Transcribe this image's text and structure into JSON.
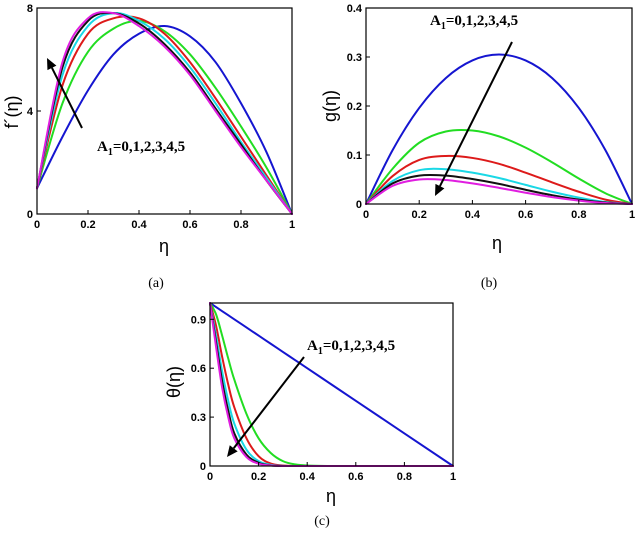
{
  "chart_data": [
    {
      "type": "line",
      "caption": "(a)",
      "xlabel": "η",
      "ylabel": "f´(η)",
      "xlim": [
        0,
        1
      ],
      "ylim": [
        0,
        8
      ],
      "xticks": [
        "0",
        "0.2",
        "0.4",
        "0.6",
        "0.8",
        "1"
      ],
      "yticks": [
        "0",
        "4",
        "8"
      ],
      "annotation": {
        "main": "A",
        "sub": "1",
        "rest": "=0,1,2,3,4,5"
      },
      "x": [
        0,
        0.1,
        0.2,
        0.3,
        0.4,
        0.5,
        0.6,
        0.7,
        0.8,
        0.9,
        1.0
      ],
      "series": [
        {
          "color": "#1515d0",
          "values": [
            1.0,
            3.0,
            4.8,
            6.2,
            7.0,
            7.3,
            6.9,
            5.9,
            4.3,
            2.4,
            0.0
          ]
        },
        {
          "color": "#22dd22",
          "values": [
            1.0,
            4.3,
            6.3,
            7.2,
            7.5,
            7.1,
            6.2,
            4.9,
            3.4,
            1.8,
            0.0
          ]
        },
        {
          "color": "#dd1a1a",
          "values": [
            1.0,
            5.0,
            7.0,
            7.6,
            7.6,
            7.0,
            5.9,
            4.5,
            3.0,
            1.5,
            0.0
          ]
        },
        {
          "color": "#1ad8e6",
          "values": [
            1.0,
            5.4,
            7.3,
            7.8,
            7.5,
            6.8,
            5.7,
            4.3,
            2.8,
            1.4,
            0.0
          ]
        },
        {
          "color": "#111111",
          "values": [
            1.0,
            5.7,
            7.5,
            7.8,
            7.4,
            6.6,
            5.5,
            4.1,
            2.7,
            1.3,
            0.0
          ]
        },
        {
          "color": "#e01ee0",
          "values": [
            1.0,
            5.9,
            7.6,
            7.8,
            7.3,
            6.5,
            5.4,
            4.0,
            2.6,
            1.3,
            0.0
          ]
        }
      ]
    },
    {
      "type": "line",
      "caption": "(b)",
      "xlabel": "η",
      "ylabel": "g(η)",
      "xlim": [
        0,
        1
      ],
      "ylim": [
        0,
        0.4
      ],
      "xticks": [
        "0",
        "0.2",
        "0.4",
        "0.6",
        "0.8",
        "1"
      ],
      "yticks": [
        "0",
        "0.1",
        "0.2",
        "0.3",
        "0.4"
      ],
      "annotation": {
        "main": "A",
        "sub": "1",
        "rest": "=0,1,2,3,4,5"
      },
      "x": [
        0,
        0.1,
        0.2,
        0.3,
        0.4,
        0.5,
        0.6,
        0.7,
        0.8,
        0.9,
        1.0
      ],
      "series": [
        {
          "color": "#1515d0",
          "values": [
            0,
            0.11,
            0.196,
            0.257,
            0.293,
            0.305,
            0.293,
            0.257,
            0.196,
            0.11,
            0
          ]
        },
        {
          "color": "#22dd22",
          "values": [
            0,
            0.072,
            0.125,
            0.148,
            0.15,
            0.138,
            0.115,
            0.085,
            0.052,
            0.022,
            0
          ]
        },
        {
          "color": "#dd1a1a",
          "values": [
            0,
            0.057,
            0.09,
            0.098,
            0.094,
            0.082,
            0.064,
            0.044,
            0.025,
            0.009,
            0
          ]
        },
        {
          "color": "#1ad8e6",
          "values": [
            0,
            0.047,
            0.069,
            0.071,
            0.064,
            0.053,
            0.039,
            0.025,
            0.013,
            0.004,
            0
          ]
        },
        {
          "color": "#111111",
          "values": [
            0,
            0.042,
            0.058,
            0.058,
            0.051,
            0.041,
            0.029,
            0.018,
            0.009,
            0.003,
            0
          ]
        },
        {
          "color": "#e01ee0",
          "values": [
            0,
            0.037,
            0.05,
            0.049,
            0.042,
            0.033,
            0.023,
            0.014,
            0.007,
            0.002,
            0
          ]
        }
      ]
    },
    {
      "type": "line",
      "caption": "(c)",
      "xlabel": "η",
      "ylabel": "θ(η)",
      "xlim": [
        0,
        1
      ],
      "ylim": [
        0,
        1
      ],
      "xticks": [
        "0",
        "0.2",
        "0.4",
        "0.6",
        "0.8",
        "1"
      ],
      "yticks": [
        "0",
        "0.3",
        "0.6",
        "0.9"
      ],
      "annotation": {
        "main": "A",
        "sub": "1",
        "rest": "=0,1,2,3,4,5"
      },
      "x": [
        0,
        0.025,
        0.05,
        0.075,
        0.1,
        0.15,
        0.2,
        0.25,
        0.3,
        0.35,
        0.4,
        0.5,
        0.6,
        1.0
      ],
      "series": [
        {
          "color": "#1515d0",
          "values": [
            1.0,
            0.975,
            0.95,
            0.925,
            0.9,
            0.85,
            0.8,
            0.75,
            0.7,
            0.65,
            0.6,
            0.5,
            0.4,
            0.0
          ]
        },
        {
          "color": "#22dd22",
          "values": [
            1.0,
            0.93,
            0.8,
            0.66,
            0.53,
            0.32,
            0.17,
            0.08,
            0.03,
            0.01,
            0.003,
            0.0,
            0.0,
            0.0
          ]
        },
        {
          "color": "#dd1a1a",
          "values": [
            1.0,
            0.86,
            0.67,
            0.5,
            0.36,
            0.17,
            0.06,
            0.015,
            0.003,
            0.0,
            0.0,
            0.0,
            0.0,
            0.0
          ]
        },
        {
          "color": "#1ad8e6",
          "values": [
            1.0,
            0.8,
            0.58,
            0.4,
            0.26,
            0.1,
            0.03,
            0.007,
            0.001,
            0.0,
            0.0,
            0.0,
            0.0,
            0.0
          ]
        },
        {
          "color": "#111111",
          "values": [
            1.0,
            0.76,
            0.52,
            0.34,
            0.2,
            0.07,
            0.02,
            0.004,
            0.0,
            0.0,
            0.0,
            0.0,
            0.0,
            0.0
          ]
        },
        {
          "color": "#e01ee0",
          "values": [
            1.0,
            0.73,
            0.48,
            0.3,
            0.17,
            0.055,
            0.014,
            0.003,
            0.0,
            0.0,
            0.0,
            0.0,
            0.0,
            0.0
          ]
        }
      ]
    }
  ]
}
